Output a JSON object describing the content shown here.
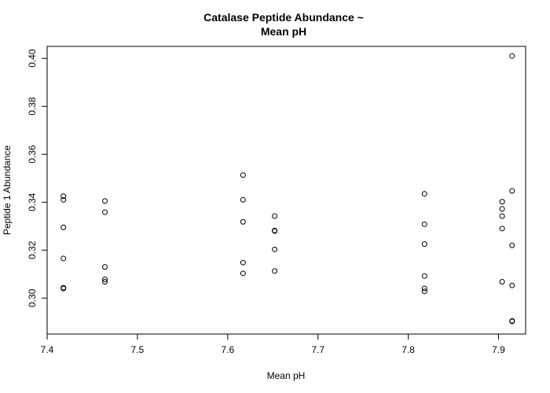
{
  "chart_data": {
    "type": "scatter",
    "title_lines": [
      "Catalase Peptide Abundance ~",
      "Mean pH"
    ],
    "xlabel": "Mean pH",
    "ylabel": "Peptide 1 Abundance",
    "xlim": [
      7.4,
      7.93
    ],
    "ylim": [
      0.285,
      0.405
    ],
    "xticks": [
      7.4,
      7.5,
      7.6,
      7.7,
      7.8,
      7.9
    ],
    "xtick_labels": [
      "7.4",
      "7.5",
      "7.6",
      "7.7",
      "7.8",
      "7.9"
    ],
    "yticks": [
      0.3,
      0.32,
      0.34,
      0.36,
      0.38,
      0.4
    ],
    "ytick_labels": [
      "0.30",
      "0.32",
      "0.34",
      "0.36",
      "0.38",
      "0.40"
    ],
    "grid": false,
    "points": [
      {
        "x": 7.418,
        "y": 0.3425
      },
      {
        "x": 7.418,
        "y": 0.341
      },
      {
        "x": 7.418,
        "y": 0.3295
      },
      {
        "x": 7.418,
        "y": 0.3165
      },
      {
        "x": 7.418,
        "y": 0.3043
      },
      {
        "x": 7.418,
        "y": 0.304
      },
      {
        "x": 7.464,
        "y": 0.3405
      },
      {
        "x": 7.464,
        "y": 0.3358
      },
      {
        "x": 7.464,
        "y": 0.313
      },
      {
        "x": 7.464,
        "y": 0.3078
      },
      {
        "x": 7.464,
        "y": 0.3068
      },
      {
        "x": 7.617,
        "y": 0.3513
      },
      {
        "x": 7.617,
        "y": 0.341
      },
      {
        "x": 7.617,
        "y": 0.3318
      },
      {
        "x": 7.617,
        "y": 0.3148
      },
      {
        "x": 7.617,
        "y": 0.3103
      },
      {
        "x": 7.652,
        "y": 0.3342
      },
      {
        "x": 7.652,
        "y": 0.3282
      },
      {
        "x": 7.652,
        "y": 0.328
      },
      {
        "x": 7.652,
        "y": 0.3203
      },
      {
        "x": 7.652,
        "y": 0.3113
      },
      {
        "x": 7.818,
        "y": 0.3435
      },
      {
        "x": 7.818,
        "y": 0.3308
      },
      {
        "x": 7.818,
        "y": 0.3225
      },
      {
        "x": 7.818,
        "y": 0.3092
      },
      {
        "x": 7.818,
        "y": 0.304
      },
      {
        "x": 7.818,
        "y": 0.3028
      },
      {
        "x": 7.904,
        "y": 0.3402
      },
      {
        "x": 7.904,
        "y": 0.3372
      },
      {
        "x": 7.904,
        "y": 0.3342
      },
      {
        "x": 7.904,
        "y": 0.329
      },
      {
        "x": 7.904,
        "y": 0.3068
      },
      {
        "x": 7.915,
        "y": 0.401
      },
      {
        "x": 7.915,
        "y": 0.3447
      },
      {
        "x": 7.915,
        "y": 0.322
      },
      {
        "x": 7.915,
        "y": 0.3053
      },
      {
        "x": 7.915,
        "y": 0.2905
      },
      {
        "x": 7.915,
        "y": 0.2903
      }
    ]
  }
}
